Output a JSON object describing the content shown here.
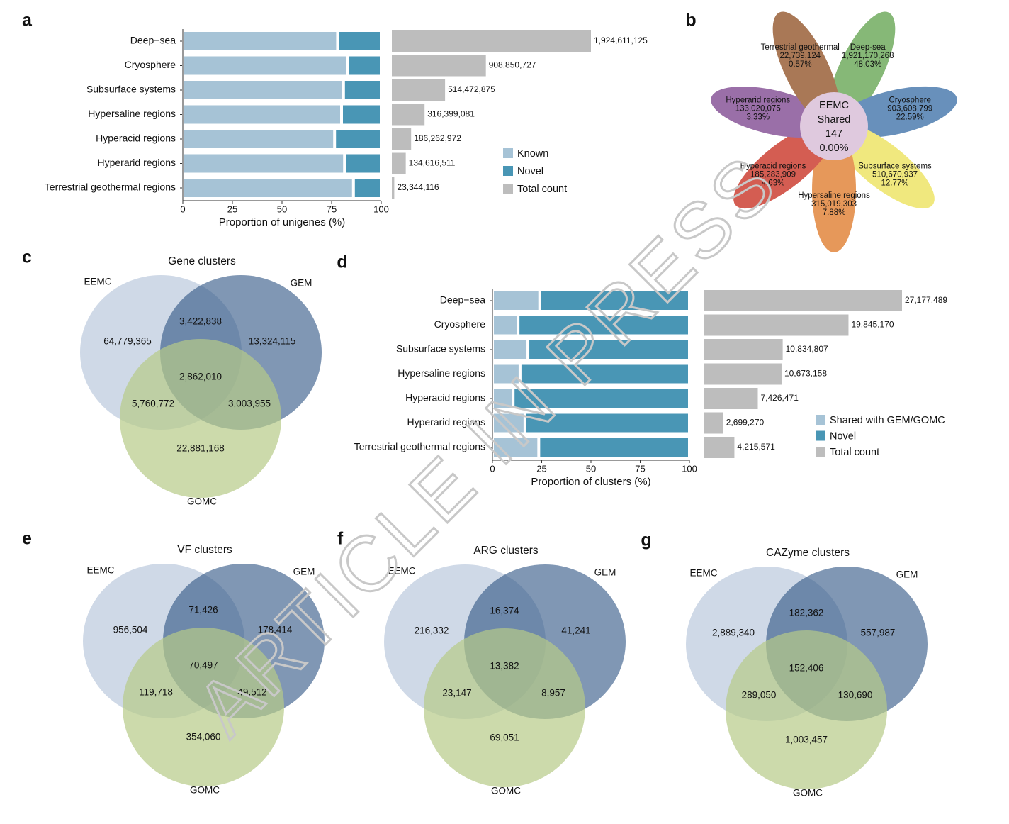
{
  "watermark": "ARTICLE IN PRESS",
  "colors": {
    "known": "#a6c3d6",
    "novel": "#4996b5",
    "total": "#bdbdbd",
    "eemc": "#9fb3cf",
    "gem": "#2b5282",
    "gomc": "#b6ca88",
    "center": "#dfc9de",
    "petals": [
      "#86b877",
      "#6890bb",
      "#f0e87e",
      "#e6985a",
      "#d45d52",
      "#9a6fa8",
      "#a97856"
    ]
  },
  "chart_data": [
    {
      "panel": "a",
      "type": "bar",
      "categories": [
        "Deep−sea",
        "Cryosphere",
        "Subsurface systems",
        "Hypersaline regions",
        "Hyperacid regions",
        "Hyperarid regions",
        "Terrestrial geothermal regions"
      ],
      "series": [
        {
          "name": "Known",
          "values": [
            78,
            83,
            81,
            80,
            76.5,
            81.5,
            86
          ]
        },
        {
          "name": "Novel",
          "values": [
            22,
            17,
            19,
            20,
            23.5,
            18.5,
            14
          ]
        }
      ],
      "xlabel": "Proportion of unigenes (%)",
      "xlim": [
        0,
        100
      ],
      "xticks": [
        "0",
        "25",
        "50",
        "75",
        "100"
      ],
      "total_count": {
        "name": "Total count",
        "values": [
          1924611125,
          908850727,
          514472875,
          316399081,
          186262972,
          134616511,
          23344116
        ],
        "labels": [
          "1,924,611,125",
          "908,850,727",
          "514,472,875",
          "316,399,081",
          "186,262,972",
          "134,616,511",
          "23,344,116"
        ]
      },
      "legend": [
        "Known",
        "Novel",
        "Total count"
      ]
    },
    {
      "panel": "b",
      "type": "flower",
      "center": {
        "title": "EEMC",
        "subtitle": "Shared",
        "count": "147",
        "percent": "0.00%"
      },
      "petals": [
        {
          "name": "Deep-sea",
          "count": "1,921,170,268",
          "percent": "48.03%"
        },
        {
          "name": "Cryosphere",
          "count": "903,608,799",
          "percent": "22.59%"
        },
        {
          "name": "Subsurface systems",
          "count": "510,670,937",
          "percent": "12.77%"
        },
        {
          "name": "Hypersaline regions",
          "count": "315,019,303",
          "percent": "7.88%"
        },
        {
          "name": "Hyperacid regions",
          "count": "185,283,909",
          "percent": "4.63%"
        },
        {
          "name": "Hyperarid regions",
          "count": "133,020,075",
          "percent": "3.33%"
        },
        {
          "name": "Terrestrial geothermal",
          "count": "22,739,124",
          "percent": "0.57%"
        }
      ]
    },
    {
      "panel": "c",
      "type": "venn",
      "title": "Gene clusters",
      "sets": [
        "EEMC",
        "GEM",
        "GOMC"
      ],
      "regions": {
        "eemc_only": "64,779,365",
        "eemc_gem": "3,422,838",
        "gem_only": "13,324,115",
        "all": "2,862,010",
        "eemc_gomc": "5,760,772",
        "gem_gomc": "3,003,955",
        "gomc_only": "22,881,168"
      }
    },
    {
      "panel": "d",
      "type": "bar",
      "categories": [
        "Deep−sea",
        "Cryosphere",
        "Subsurface systems",
        "Hypersaline regions",
        "Hyperacid regions",
        "Hyperarid regions",
        "Terrestrial geothermal regions"
      ],
      "series": [
        {
          "name": "Shared with GEM/GOMC",
          "values": [
            24,
            13,
            18,
            14,
            10.5,
            16.5,
            23.5
          ]
        },
        {
          "name": "Novel",
          "values": [
            76,
            87,
            82,
            86,
            89.5,
            83.5,
            76.5
          ]
        }
      ],
      "xlabel": "Proportion of clusters (%)",
      "xlim": [
        0,
        100
      ],
      "xticks": [
        "0",
        "25",
        "50",
        "75",
        "100"
      ],
      "total_count": {
        "name": "Total count",
        "values": [
          27177489,
          19845170,
          10834807,
          10673158,
          7426471,
          2699270,
          4215571
        ],
        "labels": [
          "27,177,489",
          "19,845,170",
          "10,834,807",
          "10,673,158",
          "7,426,471",
          "2,699,270",
          "4,215,571"
        ]
      },
      "legend": [
        "Shared with GEM/GOMC",
        "Novel",
        "Total count"
      ]
    },
    {
      "panel": "e",
      "type": "venn",
      "title": "VF clusters",
      "sets": [
        "EEMC",
        "GEM",
        "GOMC"
      ],
      "regions": {
        "eemc_only": "956,504",
        "eemc_gem": "71,426",
        "gem_only": "178,414",
        "all": "70,497",
        "eemc_gomc": "119,718",
        "gem_gomc": "49,512",
        "gomc_only": "354,060"
      }
    },
    {
      "panel": "f",
      "type": "venn",
      "title": "ARG clusters",
      "sets": [
        "EEMC",
        "GEM",
        "GOMC"
      ],
      "regions": {
        "eemc_only": "216,332",
        "eemc_gem": "16,374",
        "gem_only": "41,241",
        "all": "13,382",
        "eemc_gomc": "23,147",
        "gem_gomc": "8,957",
        "gomc_only": "69,051"
      }
    },
    {
      "panel": "g",
      "type": "venn",
      "title": "CAZyme clusters",
      "sets": [
        "EEMC",
        "GEM",
        "GOMC"
      ],
      "regions": {
        "eemc_only": "2,889,340",
        "eemc_gem": "182,362",
        "gem_only": "557,987",
        "all": "152,406",
        "eemc_gomc": "289,050",
        "gem_gomc": "130,690",
        "gomc_only": "1,003,457"
      }
    }
  ]
}
